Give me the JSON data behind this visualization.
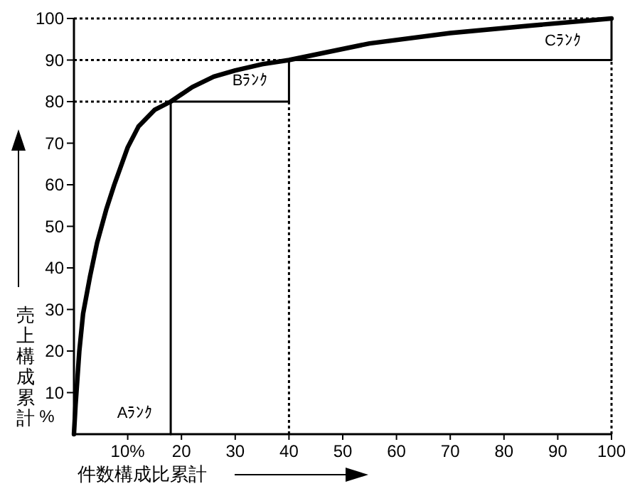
{
  "chart_data": {
    "type": "line",
    "xlabel": "件数構成比累計",
    "ylabel": "売上構成累計",
    "xlim": [
      0,
      100
    ],
    "ylim": [
      0,
      100
    ],
    "xticks": [
      {
        "value": 10,
        "label": "10%"
      },
      20,
      30,
      40,
      50,
      60,
      70,
      80,
      90,
      100
    ],
    "yticks": [
      10,
      20,
      30,
      40,
      50,
      60,
      70,
      80,
      90,
      100
    ],
    "grid": false,
    "annotations": [
      "%",
      "Aﾗﾝｸ",
      "Bﾗﾝｸ",
      "Cﾗﾝｸ"
    ],
    "series": [
      {
        "type": "line",
        "color": "#000000",
        "line_style": "solid",
        "x": [
          0,
          0.3,
          1,
          1.7,
          3,
          4.3,
          6,
          7.5,
          10,
          12,
          15,
          18,
          22,
          26,
          30,
          35,
          40,
          55,
          70,
          85,
          100
        ],
        "values": [
          0,
          7,
          20,
          29,
          38,
          46,
          54,
          60,
          69,
          74,
          78,
          80,
          83.5,
          86,
          87.5,
          89,
          90,
          94,
          96.5,
          98.3,
          100
        ]
      },
      {
        "type": "step",
        "color": "#000000",
        "line_style": "solid",
        "x": [
          18,
          40,
          100,
          100
        ],
        "values": [
          0,
          80,
          90,
          100
        ]
      },
      {
        "type": "line",
        "color": "#000000",
        "line_style": "dotted",
        "x": [
          0,
          18
        ],
        "values": [
          80,
          80
        ]
      },
      {
        "type": "line",
        "color": "#000000",
        "line_style": "dotted",
        "x": [
          0,
          40
        ],
        "values": [
          90,
          90
        ]
      },
      {
        "type": "line",
        "color": "#000000",
        "line_style": "dotted",
        "x": [
          0,
          100
        ],
        "values": [
          100,
          100
        ]
      },
      {
        "type": "line",
        "color": "#000000",
        "line_style": "dotted",
        "x": [
          40,
          40
        ],
        "values": [
          0,
          80
        ]
      },
      {
        "type": "line",
        "color": "#000000",
        "line_style": "dotted",
        "x": [
          100,
          100
        ],
        "values": [
          0,
          90
        ]
      }
    ]
  }
}
